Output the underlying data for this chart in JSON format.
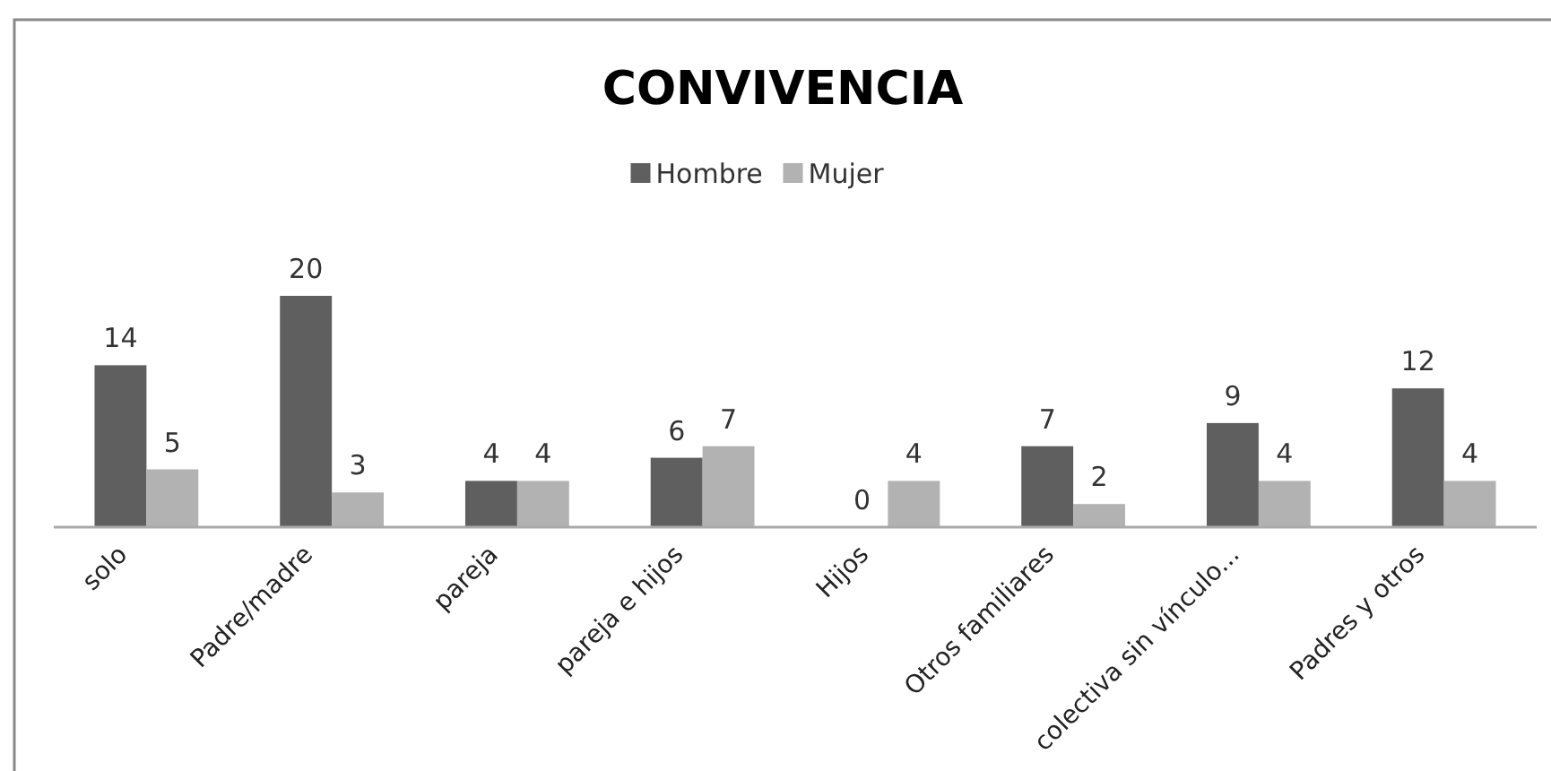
{
  "chart_data": {
    "type": "bar",
    "title": "CONVIVENCIA",
    "categories": [
      "solo",
      "Padre/madre",
      "pareja",
      "pareja e hijos",
      "Hijos",
      "Otros familiares",
      "colectiva sin vínculo...",
      "Padres y otros"
    ],
    "series": [
      {
        "name": "Hombre",
        "color": "#5f5f5f",
        "values": [
          14,
          20,
          4,
          6,
          0,
          7,
          9,
          12
        ]
      },
      {
        "name": "Mujer",
        "color": "#b2b2b2",
        "values": [
          5,
          3,
          4,
          7,
          4,
          2,
          4,
          4
        ]
      }
    ],
    "data_labels": true,
    "legend": "top",
    "grid": false
  }
}
